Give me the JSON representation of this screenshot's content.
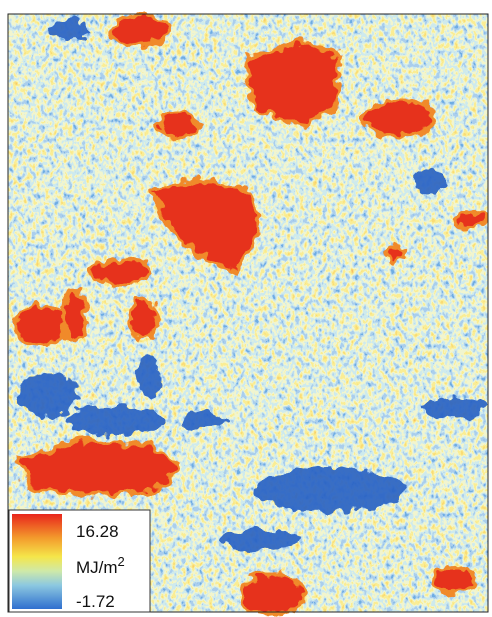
{
  "legend": {
    "max": 16.28,
    "unit": "MJ/m",
    "unit_exponent": "2",
    "min": -1.72
  }
}
